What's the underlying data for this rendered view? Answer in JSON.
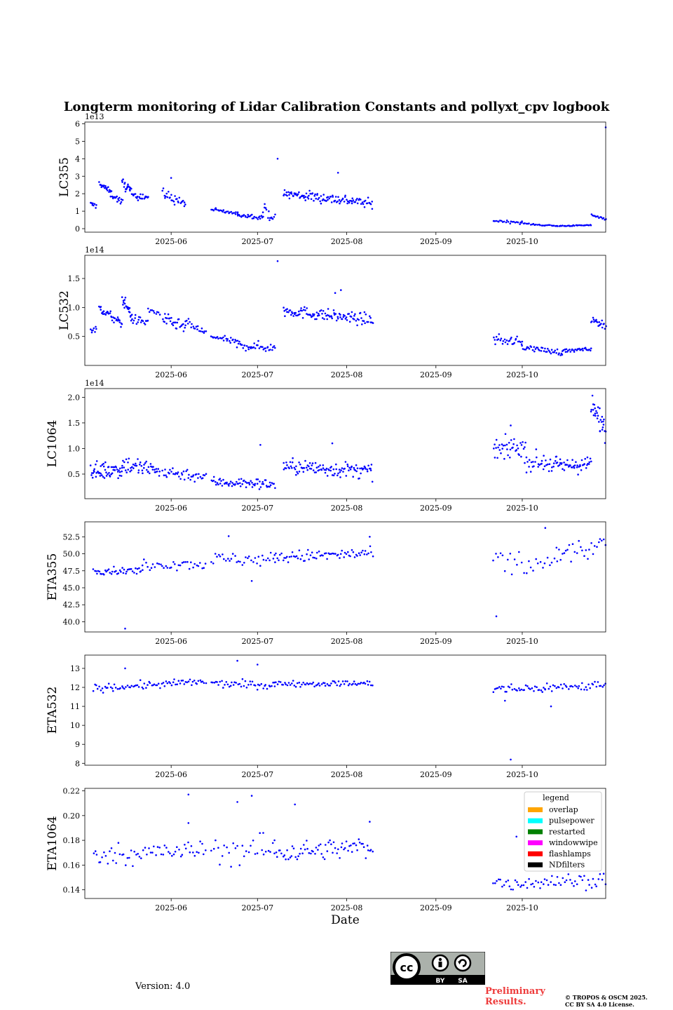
{
  "title": "Longterm monitoring of Lidar Calibration Constants and pollyxt_cpv logbook",
  "version": "Version: 4.0",
  "preliminary": [
    "Preliminary",
    "Results."
  ],
  "copyright": [
    "© TROPOS & OSCM 2025.",
    "CC BY SA 4.0 License."
  ],
  "license_badge": [
    "BY",
    "SA"
  ],
  "colors": {
    "points": "#0000ff",
    "axis": "#000000"
  },
  "legend": {
    "title": "legend",
    "items": [
      {
        "label": "overlap",
        "color": "#ffa500"
      },
      {
        "label": "pulsepower",
        "color": "#00ffff"
      },
      {
        "label": "restarted",
        "color": "#008000"
      },
      {
        "label": "windowwipe",
        "color": "#ff00ff"
      },
      {
        "label": "flashlamps",
        "color": "#ff0000"
      },
      {
        "label": "NDfilters",
        "color": "#000000"
      }
    ]
  },
  "chart_data": [
    {
      "type": "scatter",
      "ylabel": "LC355",
      "xlabel": "",
      "multiplier": "1e13",
      "xlim": [
        "2025-05-02",
        "2025-10-30"
      ],
      "x_ticks": [
        "2025-06",
        "2025-07",
        "2025-08",
        "2025-09",
        "2025-10"
      ],
      "ylim": [
        -0.2,
        6.1
      ],
      "y_ticks": [
        "0",
        "1",
        "2",
        "3",
        "4",
        "5",
        "6"
      ],
      "segments": [
        {
          "start": 2,
          "end": 4,
          "v0": 1.4,
          "v1": 1.3,
          "noise": 0.15,
          "n": 8
        },
        {
          "start": 5,
          "end": 9,
          "v0": 2.6,
          "v1": 2.1,
          "noise": 0.15,
          "n": 20
        },
        {
          "start": 9,
          "end": 13,
          "v0": 2.0,
          "v1": 1.5,
          "noise": 0.2,
          "n": 18
        },
        {
          "start": 13,
          "end": 16,
          "v0": 2.6,
          "v1": 2.2,
          "noise": 0.3,
          "n": 18
        },
        {
          "start": 16,
          "end": 22,
          "v0": 2.0,
          "v1": 1.8,
          "noise": 0.25,
          "n": 22
        },
        {
          "start": 27,
          "end": 35,
          "v0": 2.0,
          "v1": 1.4,
          "noise": 0.3,
          "n": 28
        },
        {
          "start": 44,
          "end": 53,
          "v0": 1.1,
          "v1": 0.85,
          "noise": 0.1,
          "n": 25
        },
        {
          "start": 53,
          "end": 62,
          "v0": 0.8,
          "v1": 0.65,
          "noise": 0.12,
          "n": 28
        },
        {
          "start": 62,
          "end": 66,
          "v0": 1.2,
          "v1": 0.5,
          "noise": 0.3,
          "n": 14
        },
        {
          "start": 69,
          "end": 93,
          "v0": 2.0,
          "v1": 1.6,
          "noise": 0.3,
          "n": 90
        },
        {
          "start": 93,
          "end": 100,
          "v0": 1.6,
          "v1": 1.4,
          "noise": 0.25,
          "n": 24
        },
        {
          "start": 142,
          "end": 152,
          "v0": 0.45,
          "v1": 0.35,
          "noise": 0.08,
          "n": 22
        },
        {
          "start": 152,
          "end": 164,
          "v0": 0.3,
          "v1": 0.15,
          "noise": 0.05,
          "n": 26
        },
        {
          "start": 164,
          "end": 176,
          "v0": 0.15,
          "v1": 0.2,
          "noise": 0.03,
          "n": 30
        },
        {
          "start": 176,
          "end": 181,
          "v0": 0.8,
          "v1": 0.55,
          "noise": 0.05,
          "n": 14
        }
      ],
      "points": [
        [
          67,
          4.0
        ],
        [
          181,
          5.8
        ],
        [
          30,
          2.9
        ],
        [
          88,
          3.2
        ]
      ]
    },
    {
      "type": "scatter",
      "ylabel": "LC532",
      "xlabel": "",
      "multiplier": "1e14",
      "xlim": [
        "2025-05-02",
        "2025-10-30"
      ],
      "x_ticks": [
        "2025-06",
        "2025-07",
        "2025-08",
        "2025-09",
        "2025-10"
      ],
      "ylim": [
        0.0,
        1.9
      ],
      "y_ticks": [
        "0.5",
        "1.0",
        "1.5"
      ],
      "segments": [
        {
          "start": 2,
          "end": 4,
          "v0": 0.62,
          "v1": 0.6,
          "noise": 0.07,
          "n": 8
        },
        {
          "start": 5,
          "end": 13,
          "v0": 1.0,
          "v1": 0.7,
          "noise": 0.08,
          "n": 34
        },
        {
          "start": 13,
          "end": 16,
          "v0": 1.15,
          "v1": 0.9,
          "noise": 0.1,
          "n": 20
        },
        {
          "start": 16,
          "end": 22,
          "v0": 0.8,
          "v1": 0.75,
          "noise": 0.08,
          "n": 22
        },
        {
          "start": 22,
          "end": 26,
          "v0": 0.95,
          "v1": 0.9,
          "noise": 0.05,
          "n": 10
        },
        {
          "start": 27,
          "end": 35,
          "v0": 0.8,
          "v1": 0.65,
          "noise": 0.1,
          "n": 30
        },
        {
          "start": 35,
          "end": 42,
          "v0": 0.75,
          "v1": 0.55,
          "noise": 0.07,
          "n": 20
        },
        {
          "start": 44,
          "end": 53,
          "v0": 0.5,
          "v1": 0.4,
          "noise": 0.05,
          "n": 26
        },
        {
          "start": 53,
          "end": 66,
          "v0": 0.35,
          "v1": 0.3,
          "noise": 0.08,
          "n": 40
        },
        {
          "start": 69,
          "end": 100,
          "v0": 0.95,
          "v1": 0.78,
          "noise": 0.1,
          "n": 110
        },
        {
          "start": 142,
          "end": 152,
          "v0": 0.45,
          "v1": 0.4,
          "noise": 0.08,
          "n": 30
        },
        {
          "start": 152,
          "end": 166,
          "v0": 0.32,
          "v1": 0.22,
          "noise": 0.05,
          "n": 40
        },
        {
          "start": 166,
          "end": 176,
          "v0": 0.25,
          "v1": 0.28,
          "noise": 0.03,
          "n": 30
        },
        {
          "start": 176,
          "end": 181,
          "v0": 0.78,
          "v1": 0.7,
          "noise": 0.06,
          "n": 20
        }
      ],
      "points": [
        [
          67,
          1.8
        ],
        [
          89,
          1.3
        ],
        [
          87,
          1.25
        ]
      ]
    },
    {
      "type": "scatter",
      "ylabel": "LC1064",
      "xlabel": "",
      "multiplier": "1e14",
      "xlim": [
        "2025-05-02",
        "2025-10-30"
      ],
      "x_ticks": [
        "2025-06",
        "2025-07",
        "2025-08",
        "2025-09",
        "2025-10"
      ],
      "ylim": [
        0.02,
        2.17
      ],
      "y_ticks": [
        "0.5",
        "1.0",
        "1.5",
        "2.0"
      ],
      "segments": [
        {
          "start": 2,
          "end": 13,
          "v0": 0.55,
          "v1": 0.6,
          "noise": 0.17,
          "n": 55
        },
        {
          "start": 13,
          "end": 26,
          "v0": 0.7,
          "v1": 0.55,
          "noise": 0.18,
          "n": 50
        },
        {
          "start": 27,
          "end": 42,
          "v0": 0.55,
          "v1": 0.45,
          "noise": 0.12,
          "n": 40
        },
        {
          "start": 44,
          "end": 66,
          "v0": 0.35,
          "v1": 0.3,
          "noise": 0.1,
          "n": 70
        },
        {
          "start": 69,
          "end": 100,
          "v0": 0.65,
          "v1": 0.55,
          "noise": 0.15,
          "n": 110
        },
        {
          "start": 142,
          "end": 153,
          "v0": 0.95,
          "v1": 1.05,
          "noise": 0.2,
          "n": 40
        },
        {
          "start": 153,
          "end": 164,
          "v0": 0.75,
          "v1": 0.7,
          "noise": 0.18,
          "n": 36
        },
        {
          "start": 164,
          "end": 176,
          "v0": 0.65,
          "v1": 0.7,
          "noise": 0.15,
          "n": 46
        },
        {
          "start": 176,
          "end": 181,
          "v0": 1.8,
          "v1": 1.4,
          "noise": 0.25,
          "n": 30
        }
      ],
      "points": [
        [
          61,
          1.07
        ],
        [
          86,
          1.1
        ],
        [
          148,
          1.45
        ]
      ]
    },
    {
      "type": "scatter",
      "ylabel": "ETA355",
      "xlabel": "",
      "multiplier": "",
      "xlim": [
        "2025-05-02",
        "2025-10-30"
      ],
      "x_ticks": [
        "2025-06",
        "2025-07",
        "2025-08",
        "2025-09",
        "2025-10"
      ],
      "ylim": [
        38.5,
        54.7
      ],
      "y_ticks": [
        "40.0",
        "42.5",
        "45.0",
        "47.5",
        "50.0",
        "52.5"
      ],
      "segments": [
        {
          "start": 3,
          "end": 20,
          "v0": 47.5,
          "v1": 47.5,
          "noise": 0.5,
          "n": 42
        },
        {
          "start": 20,
          "end": 42,
          "v0": 48.5,
          "v1": 48.5,
          "noise": 0.8,
          "n": 36
        },
        {
          "start": 44,
          "end": 66,
          "v0": 49.2,
          "v1": 49.2,
          "noise": 1.0,
          "n": 36
        },
        {
          "start": 66,
          "end": 100,
          "v0": 49.5,
          "v1": 50.0,
          "noise": 0.9,
          "n": 72
        },
        {
          "start": 142,
          "end": 164,
          "v0": 48.5,
          "v1": 48.5,
          "noise": 2.0,
          "n": 28
        },
        {
          "start": 164,
          "end": 181,
          "v0": 50.0,
          "v1": 51.0,
          "noise": 1.6,
          "n": 28
        }
      ],
      "points": [
        [
          14,
          39.0
        ],
        [
          143,
          40.8
        ],
        [
          58,
          46.0
        ],
        [
          50,
          52.6
        ],
        [
          99,
          52.5
        ],
        [
          160,
          53.8
        ]
      ]
    },
    {
      "type": "scatter",
      "ylabel": "ETA532",
      "xlabel": "",
      "multiplier": "",
      "xlim": [
        "2025-05-02",
        "2025-10-30"
      ],
      "x_ticks": [
        "2025-06",
        "2025-07",
        "2025-08",
        "2025-09",
        "2025-10"
      ],
      "ylim": [
        7.9,
        13.7
      ],
      "y_ticks": [
        "8",
        "9",
        "10",
        "11",
        "12",
        "13"
      ],
      "segments": [
        {
          "start": 3,
          "end": 42,
          "v0": 11.95,
          "v1": 12.3,
          "noise": 0.2,
          "n": 80
        },
        {
          "start": 44,
          "end": 66,
          "v0": 12.2,
          "v1": 12.1,
          "noise": 0.2,
          "n": 44
        },
        {
          "start": 66,
          "end": 100,
          "v0": 12.2,
          "v1": 12.2,
          "noise": 0.15,
          "n": 70
        },
        {
          "start": 142,
          "end": 160,
          "v0": 11.9,
          "v1": 11.95,
          "noise": 0.25,
          "n": 36
        },
        {
          "start": 160,
          "end": 181,
          "v0": 12.0,
          "v1": 12.1,
          "noise": 0.25,
          "n": 40
        }
      ],
      "points": [
        [
          14,
          13.0
        ],
        [
          53,
          13.4
        ],
        [
          60,
          13.2
        ],
        [
          148,
          8.2
        ],
        [
          162,
          11.0
        ],
        [
          146,
          11.3
        ]
      ]
    },
    {
      "type": "scatter",
      "ylabel": "ETA1064",
      "xlabel": "Date",
      "multiplier": "",
      "xlim": [
        "2025-05-02",
        "2025-10-30"
      ],
      "x_ticks": [
        "2025-06",
        "2025-07",
        "2025-08",
        "2025-09",
        "2025-10"
      ],
      "ylim": [
        0.133,
        0.222
      ],
      "y_ticks": [
        "0.14",
        "0.16",
        "0.18",
        "0.20",
        "0.22"
      ],
      "segments": [
        {
          "start": 3,
          "end": 42,
          "v0": 0.168,
          "v1": 0.172,
          "noise": 0.008,
          "n": 64
        },
        {
          "start": 44,
          "end": 66,
          "v0": 0.172,
          "v1": 0.172,
          "noise": 0.012,
          "n": 30
        },
        {
          "start": 66,
          "end": 100,
          "v0": 0.17,
          "v1": 0.175,
          "noise": 0.008,
          "n": 72
        },
        {
          "start": 142,
          "end": 181,
          "v0": 0.145,
          "v1": 0.148,
          "noise": 0.006,
          "n": 64
        }
      ],
      "points": [
        [
          53,
          0.211
        ],
        [
          58,
          0.216
        ],
        [
          36,
          0.217
        ],
        [
          62,
          0.186
        ],
        [
          73,
          0.209
        ],
        [
          99,
          0.195
        ],
        [
          36,
          0.194
        ],
        [
          150,
          0.183
        ]
      ]
    }
  ]
}
